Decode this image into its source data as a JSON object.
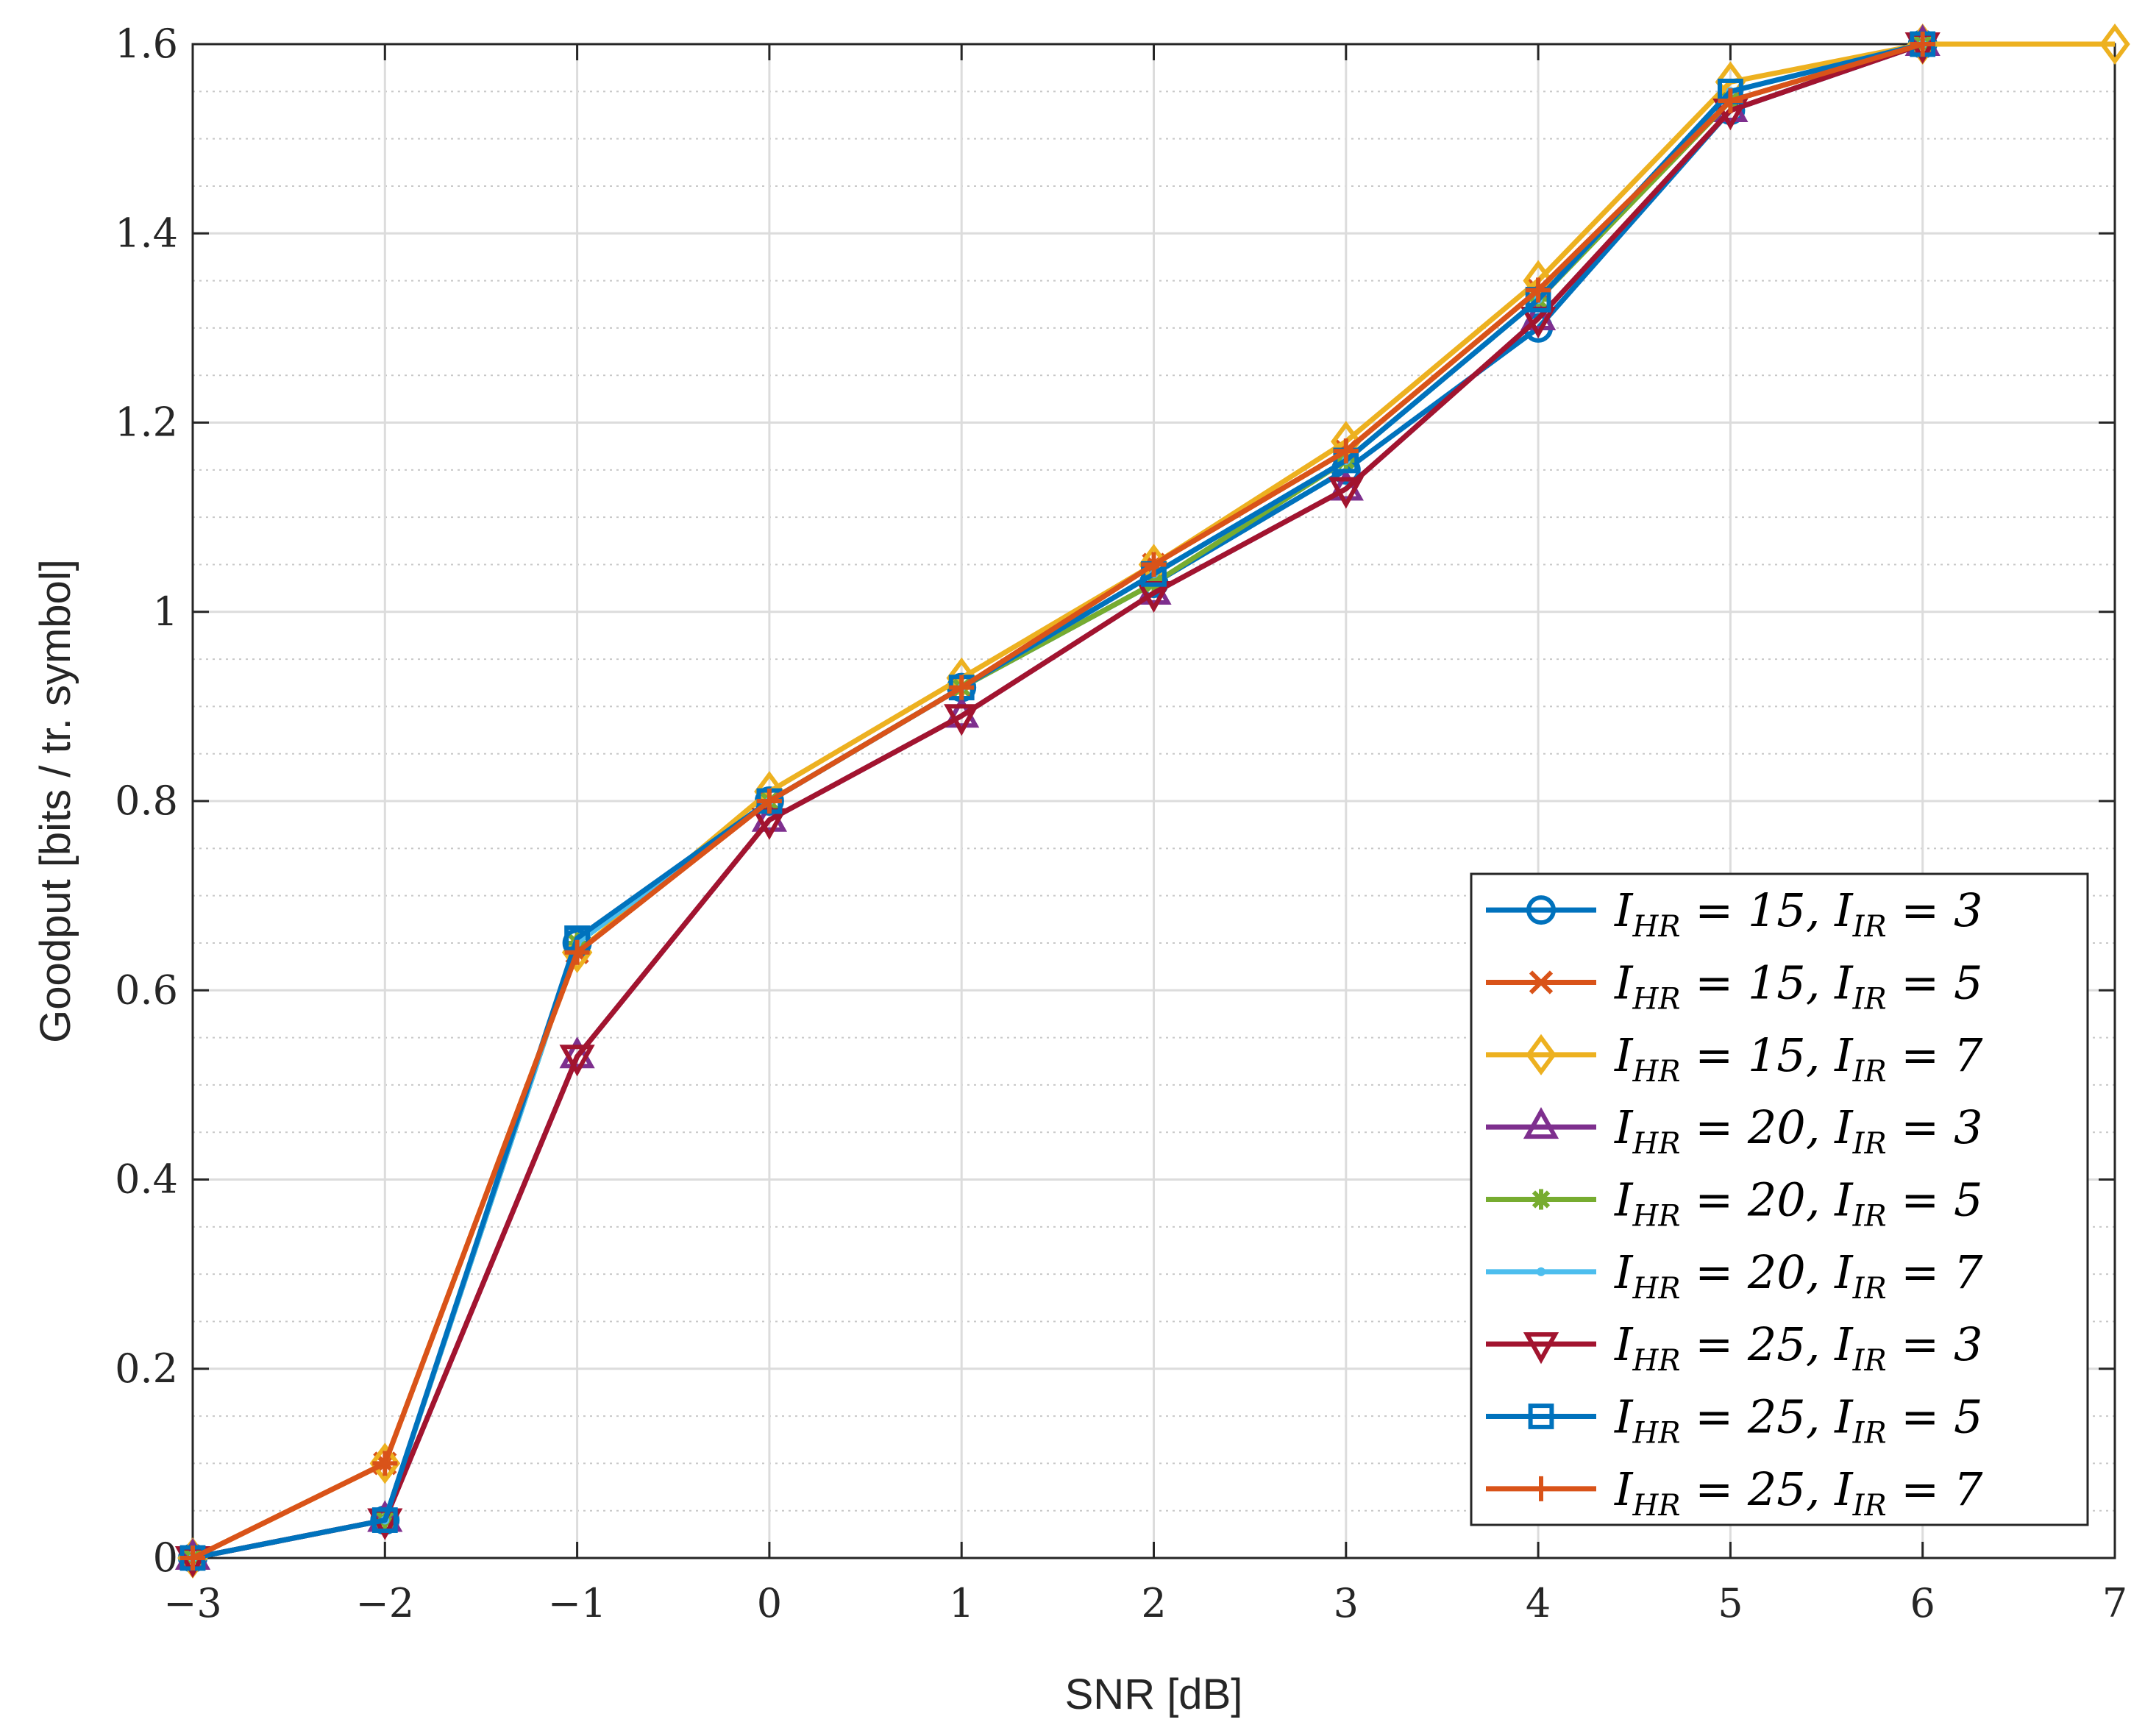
{
  "chart_data": {
    "type": "line",
    "xlabel": "SNR [dB]",
    "ylabel": "Goodput [bits / tr. symbol]",
    "xlim": [
      -3,
      7
    ],
    "ylim": [
      0,
      1.6
    ],
    "xticks": [
      -3,
      -2,
      -1,
      0,
      1,
      2,
      3,
      4,
      5,
      6,
      7
    ],
    "xtick_labels": [
      "−3",
      "−2",
      "−1",
      "0",
      "1",
      "2",
      "3",
      "4",
      "5",
      "6",
      "7"
    ],
    "yticks": [
      0,
      0.2,
      0.4,
      0.6,
      0.8,
      1.0,
      1.2,
      1.4,
      1.6
    ],
    "ytick_labels": [
      "0",
      "0.2",
      "0.4",
      "0.6",
      "0.8",
      "1",
      "1.2",
      "1.4",
      "1.6"
    ],
    "grid": true,
    "minor_grid_y": true,
    "legend_position": "bottom-right",
    "series": [
      {
        "name": "I_HR = 15, I_IR = 3",
        "hr": "15",
        "ir": "3",
        "color": "#0072BD",
        "marker": "circle",
        "x": [
          -3,
          -2,
          -1,
          0,
          1,
          2,
          3,
          4,
          5,
          6
        ],
        "y": [
          0,
          0.04,
          0.65,
          0.8,
          0.92,
          1.03,
          1.15,
          1.3,
          1.53,
          1.6
        ]
      },
      {
        "name": "I_HR = 15, I_IR = 5",
        "hr": "15",
        "ir": "5",
        "color": "#D95319",
        "marker": "x",
        "x": [
          -3,
          -2,
          -1,
          0,
          1,
          2,
          3,
          4,
          5,
          6
        ],
        "y": [
          0,
          0.1,
          0.64,
          0.8,
          0.92,
          1.05,
          1.17,
          1.34,
          1.54,
          1.6
        ]
      },
      {
        "name": "I_HR = 15, I_IR = 7",
        "hr": "15",
        "ir": "7",
        "color": "#EDB120",
        "marker": "diamond",
        "x": [
          -3,
          -2,
          -1,
          0,
          1,
          2,
          3,
          4,
          5,
          6,
          7
        ],
        "y": [
          0,
          0.1,
          0.64,
          0.81,
          0.93,
          1.05,
          1.18,
          1.35,
          1.56,
          1.6,
          1.6
        ]
      },
      {
        "name": "I_HR = 20, I_IR = 3",
        "hr": "20",
        "ir": "3",
        "color": "#7E2F8E",
        "marker": "triangle-up",
        "x": [
          -3,
          -2,
          -1,
          0,
          1,
          2,
          3,
          4,
          5,
          6
        ],
        "y": [
          0,
          0.04,
          0.53,
          0.78,
          0.89,
          1.02,
          1.13,
          1.31,
          1.53,
          1.6
        ]
      },
      {
        "name": "I_HR = 20, I_IR = 5",
        "hr": "20",
        "ir": "5",
        "color": "#77AC30",
        "marker": "asterisk",
        "x": [
          -3,
          -2,
          -1,
          0,
          1,
          2,
          3,
          4,
          5,
          6
        ],
        "y": [
          0,
          0.04,
          0.65,
          0.8,
          0.92,
          1.03,
          1.16,
          1.33,
          1.54,
          1.6
        ]
      },
      {
        "name": "I_HR = 20, I_IR = 7",
        "hr": "20",
        "ir": "7",
        "color": "#4DBEEE",
        "marker": "point",
        "x": [
          -3,
          -2,
          -1,
          0,
          1,
          2,
          3,
          4,
          5,
          6
        ],
        "y": [
          0,
          0.04,
          0.65,
          0.8,
          0.92,
          1.04,
          1.16,
          1.33,
          1.55,
          1.6
        ]
      },
      {
        "name": "I_HR = 25, I_IR = 3",
        "hr": "25",
        "ir": "3",
        "color": "#A2142F",
        "marker": "triangle-down",
        "x": [
          -3,
          -2,
          -1,
          0,
          1,
          2,
          3,
          4,
          5,
          6
        ],
        "y": [
          0,
          0.04,
          0.53,
          0.78,
          0.89,
          1.02,
          1.13,
          1.31,
          1.53,
          1.6
        ]
      },
      {
        "name": "I_HR = 25, I_IR = 5",
        "hr": "25",
        "ir": "5",
        "color": "#0072BD",
        "marker": "square",
        "x": [
          -3,
          -2,
          -1,
          0,
          1,
          2,
          3,
          4,
          5,
          6
        ],
        "y": [
          0,
          0.04,
          0.655,
          0.8,
          0.92,
          1.04,
          1.16,
          1.33,
          1.55,
          1.6
        ]
      },
      {
        "name": "I_HR = 25, I_IR = 7",
        "hr": "25",
        "ir": "7",
        "color": "#D95319",
        "marker": "plus",
        "x": [
          -3,
          -2,
          -1,
          0,
          1,
          2,
          3,
          4,
          5,
          6
        ],
        "y": [
          0,
          0.1,
          0.64,
          0.8,
          0.92,
          1.05,
          1.17,
          1.34,
          1.54,
          1.6
        ]
      }
    ]
  }
}
